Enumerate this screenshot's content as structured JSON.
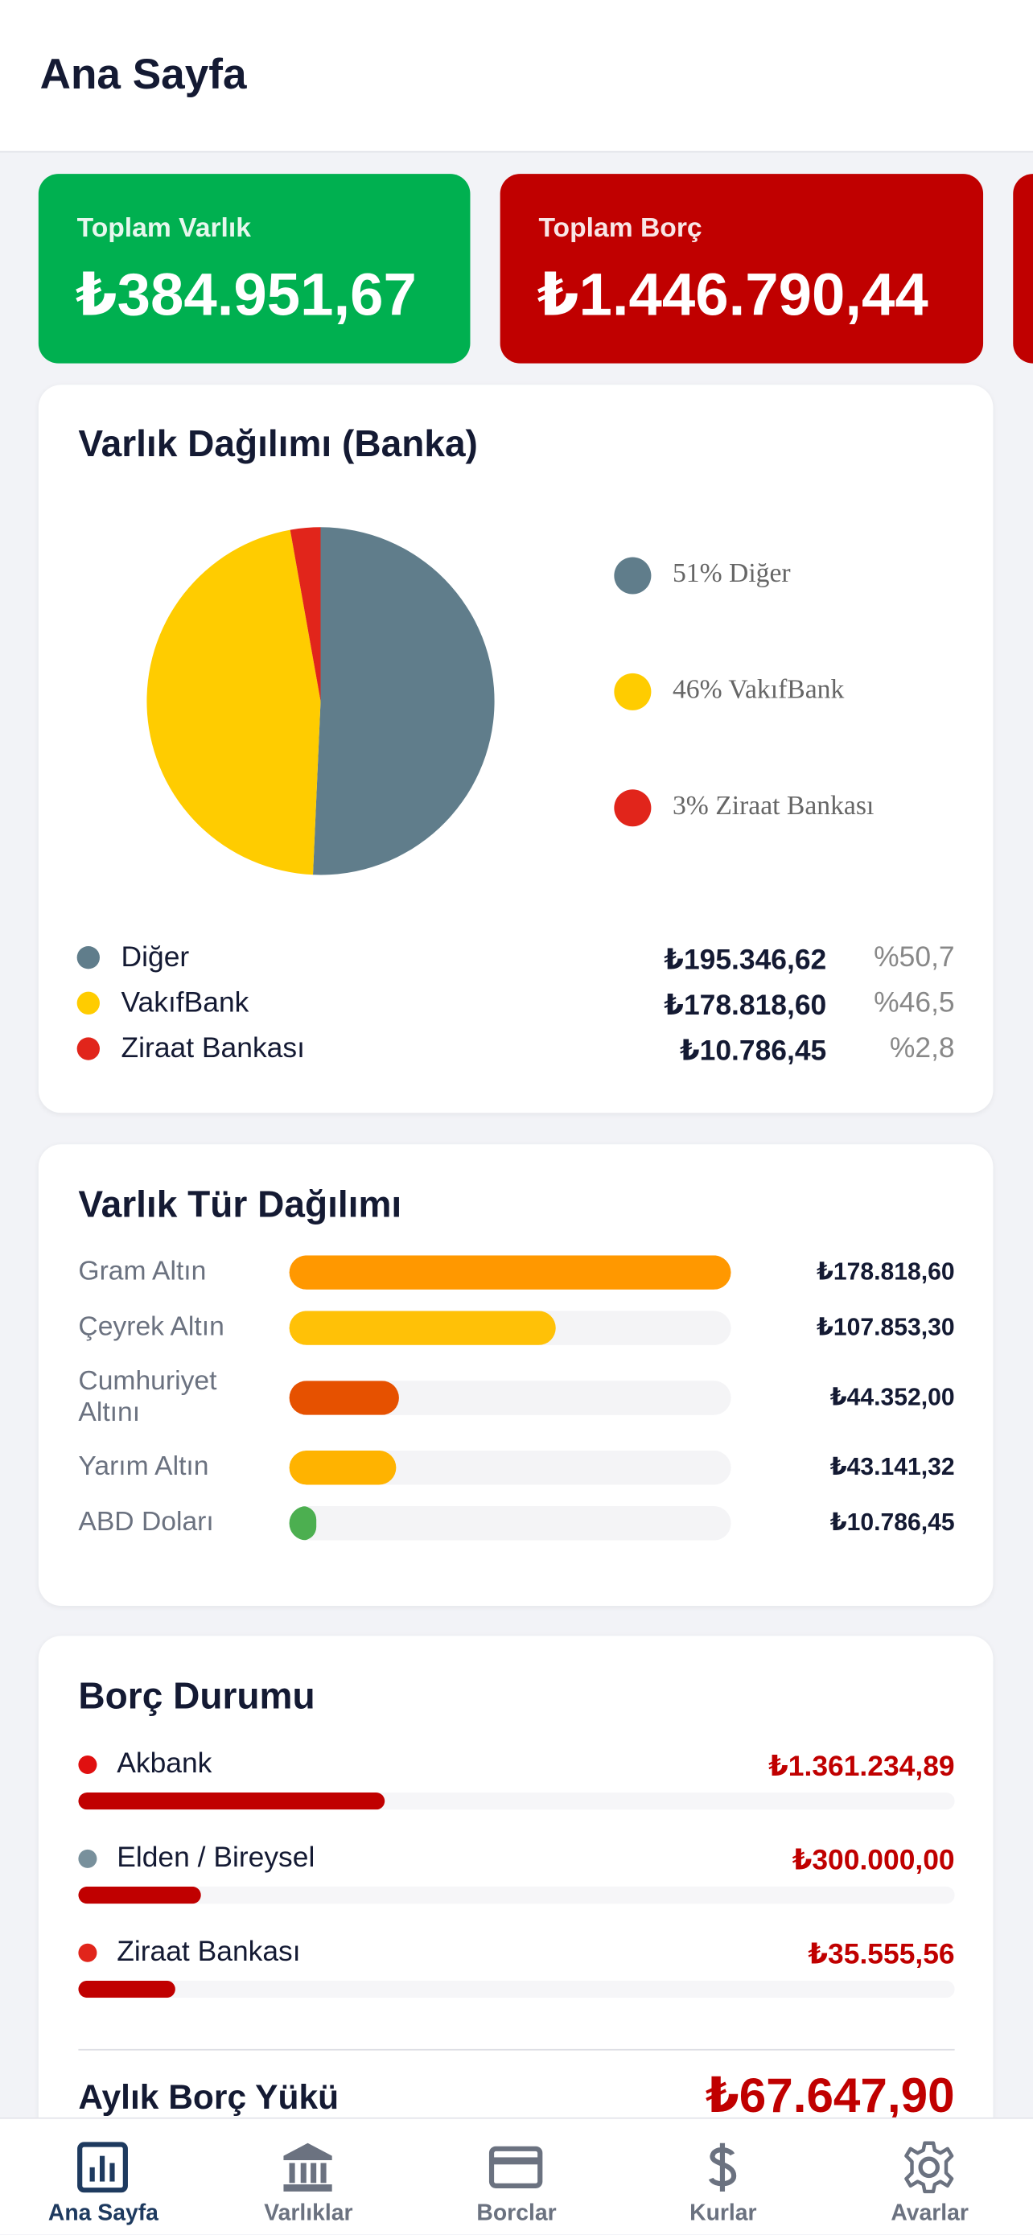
{
  "header": {
    "title": "Ana Sayfa"
  },
  "summary_cards": [
    {
      "label": "Toplam Varlık",
      "value": "₺384.951,67",
      "color": "#00b050"
    },
    {
      "label": "Toplam Borç",
      "value": "₺1.446.790,44",
      "color": "#c00000"
    }
  ],
  "bank_distribution": {
    "title": "Varlık Dağılımı (Banka)",
    "type": "pie",
    "values": [
      50.7,
      46.5,
      2.8
    ],
    "colors": [
      "#607d8b",
      "#ffcc00",
      "#e1251b"
    ],
    "legend_labels": [
      "51% Diğer",
      "46% VakıfBank",
      "3% Ziraat Bankası"
    ],
    "rows": [
      {
        "name": "Diğer",
        "amount": "₺195.346,62",
        "percent": "%50,7"
      },
      {
        "name": "VakıfBank",
        "amount": "₺178.818,60",
        "percent": "%46,5"
      },
      {
        "name": "Ziraat Bankası",
        "amount": "₺10.786,45",
        "percent": "%2,8"
      }
    ]
  },
  "type_distribution": {
    "title": "Varlık Tür Dağılımı",
    "type": "bar",
    "xlim": [
      0,
      178818.6
    ],
    "items": [
      {
        "name": "Gram Altın",
        "value": 178818.6,
        "label": "₺178.818,60",
        "color": "#ff9800"
      },
      {
        "name": "Çeyrek Altın",
        "value": 107853.3,
        "label": "₺107.853,30",
        "color": "#ffc107"
      },
      {
        "name": "Cumhuriyet Altını",
        "value": 44352,
        "label": "₺44.352,00",
        "color": "#e65100"
      },
      {
        "name": "Yarım Altın",
        "value": 43141.32,
        "label": "₺43.141,32",
        "color": "#ffb300"
      },
      {
        "name": "ABD Doları",
        "value": 10786.45,
        "label": "₺10.786,45",
        "color": "#4caf50"
      }
    ]
  },
  "debt_status": {
    "title": "Borç Durumu",
    "items": [
      {
        "name": "Akbank",
        "amount": "₺1.361.234,89",
        "dot_color": "#e01010",
        "bar_percent": 35
      },
      {
        "name": "Elden / Bireysel",
        "amount": "₺300.000,00",
        "dot_color": "#78909c",
        "bar_percent": 14
      },
      {
        "name": "Ziraat Bankası",
        "amount": "₺35.555,56",
        "dot_color": "#e1251b",
        "bar_percent": 11
      }
    ],
    "monthly_label": "Aylık Borç Yükü",
    "monthly_value": "₺67.647,90"
  },
  "nav": {
    "items": [
      "Ana Sayfa",
      "Varlıklar",
      "Borclar",
      "Kurlar",
      "Avarlar"
    ],
    "active": 0
  }
}
